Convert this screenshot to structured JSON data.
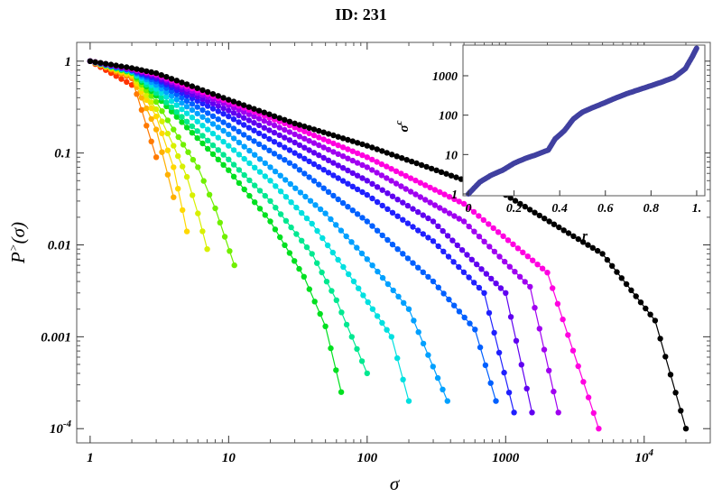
{
  "page": {
    "title": "ID: 231"
  },
  "chart_data": [
    {
      "type": "line",
      "title": "",
      "xlabel": "σ",
      "ylabel": "P>(σ)",
      "xscale": "log",
      "yscale": "log",
      "xlim": [
        0.8,
        30000
      ],
      "ylim": [
        7e-05,
        1.6
      ],
      "grid": false,
      "x_tick_labels": [
        "1",
        "10",
        "100",
        "1000",
        "10^4"
      ],
      "y_tick_labels": [
        "1",
        "0.1",
        "0.01",
        "0.001",
        "10^-4"
      ],
      "series": [
        {
          "color": "#ff3300",
          "points": [
            [
              1,
              1
            ],
            [
              2,
              0.55
            ]
          ]
        },
        {
          "color": "#ff7a00",
          "points": [
            [
              1,
              1
            ],
            [
              2,
              0.65
            ],
            [
              3,
              0.09
            ]
          ]
        },
        {
          "color": "#ffb000",
          "points": [
            [
              1,
              1
            ],
            [
              2,
              0.68
            ],
            [
              3,
              0.18
            ],
            [
              4,
              0.033
            ]
          ]
        },
        {
          "color": "#ffd800",
          "points": [
            [
              1,
              1
            ],
            [
              2,
              0.7
            ],
            [
              3,
              0.25
            ],
            [
              4,
              0.07
            ],
            [
              5,
              0.014
            ]
          ]
        },
        {
          "color": "#d8f000",
          "points": [
            [
              1,
              1
            ],
            [
              2,
              0.72
            ],
            [
              3,
              0.3
            ],
            [
              4,
              0.12
            ],
            [
              5,
              0.055
            ],
            [
              6,
              0.022
            ],
            [
              7,
              0.009
            ]
          ]
        },
        {
          "color": "#70f000",
          "points": [
            [
              1,
              1
            ],
            [
              2,
              0.74
            ],
            [
              3,
              0.36
            ],
            [
              4,
              0.18
            ],
            [
              6,
              0.07
            ],
            [
              8,
              0.025
            ],
            [
              11,
              0.006
            ]
          ]
        },
        {
          "color": "#00e020",
          "points": [
            [
              1,
              1
            ],
            [
              2,
              0.75
            ],
            [
              3,
              0.42
            ],
            [
              5,
              0.19
            ],
            [
              10,
              0.065
            ],
            [
              20,
              0.018
            ],
            [
              35,
              0.0045
            ],
            [
              50,
              0.0013
            ],
            [
              65,
              0.00025
            ]
          ]
        },
        {
          "color": "#00e890",
          "points": [
            [
              1,
              1
            ],
            [
              2,
              0.76
            ],
            [
              3,
              0.45
            ],
            [
              5,
              0.22
            ],
            [
              10,
              0.085
            ],
            [
              20,
              0.03
            ],
            [
              40,
              0.008
            ],
            [
              60,
              0.0025
            ],
            [
              100,
              0.0004
            ]
          ]
        },
        {
          "color": "#00e0e0",
          "points": [
            [
              1,
              1
            ],
            [
              2,
              0.77
            ],
            [
              3,
              0.5
            ],
            [
              5,
              0.27
            ],
            [
              10,
              0.12
            ],
            [
              20,
              0.05
            ],
            [
              40,
              0.017
            ],
            [
              80,
              0.004
            ],
            [
              150,
              0.001
            ],
            [
              200,
              0.0002
            ]
          ]
        },
        {
          "color": "#00a0ff",
          "points": [
            [
              1,
              1
            ],
            [
              2,
              0.78
            ],
            [
              3,
              0.55
            ],
            [
              5,
              0.32
            ],
            [
              10,
              0.16
            ],
            [
              20,
              0.07
            ],
            [
              50,
              0.022
            ],
            [
              100,
              0.007
            ],
            [
              200,
              0.002
            ],
            [
              380,
              0.0002
            ]
          ]
        },
        {
          "color": "#0060ff",
          "points": [
            [
              1,
              1
            ],
            [
              2,
              0.79
            ],
            [
              3,
              0.6
            ],
            [
              5,
              0.37
            ],
            [
              10,
              0.2
            ],
            [
              30,
              0.072
            ],
            [
              100,
              0.018
            ],
            [
              300,
              0.004
            ],
            [
              600,
              0.0012
            ],
            [
              850,
              0.0002
            ]
          ]
        },
        {
          "color": "#2020ff",
          "points": [
            [
              1,
              1
            ],
            [
              2,
              0.8
            ],
            [
              3,
              0.64
            ],
            [
              5,
              0.42
            ],
            [
              10,
              0.25
            ],
            [
              30,
              0.1
            ],
            [
              100,
              0.035
            ],
            [
              300,
              0.011
            ],
            [
              700,
              0.003
            ],
            [
              1150,
              0.00015
            ]
          ]
        },
        {
          "color": "#6000f0",
          "points": [
            [
              1,
              1
            ],
            [
              2,
              0.81
            ],
            [
              3,
              0.67
            ],
            [
              5,
              0.46
            ],
            [
              10,
              0.29
            ],
            [
              30,
              0.13
            ],
            [
              100,
              0.05
            ],
            [
              300,
              0.018
            ],
            [
              1000,
              0.003
            ],
            [
              1550,
              0.00015
            ]
          ]
        },
        {
          "color": "#a000f0",
          "points": [
            [
              1,
              1
            ],
            [
              2,
              0.82
            ],
            [
              3,
              0.7
            ],
            [
              5,
              0.5
            ],
            [
              10,
              0.33
            ],
            [
              30,
              0.16
            ],
            [
              100,
              0.07
            ],
            [
              500,
              0.018
            ],
            [
              1500,
              0.0035
            ],
            [
              2400,
              0.00015
            ]
          ]
        },
        {
          "color": "#ff00e0",
          "points": [
            [
              1,
              1
            ],
            [
              2,
              0.83
            ],
            [
              3,
              0.72
            ],
            [
              5,
              0.53
            ],
            [
              10,
              0.36
            ],
            [
              30,
              0.19
            ],
            [
              100,
              0.09
            ],
            [
              500,
              0.028
            ],
            [
              2000,
              0.005
            ],
            [
              4700,
              0.0001
            ]
          ]
        },
        {
          "color": "#000000",
          "points": [
            [
              1,
              1
            ],
            [
              2,
              0.84
            ],
            [
              3,
              0.74
            ],
            [
              5,
              0.56
            ],
            [
              10,
              0.38
            ],
            [
              30,
              0.21
            ],
            [
              100,
              0.12
            ],
            [
              1000,
              0.035
            ],
            [
              5000,
              0.008
            ],
            [
              12000,
              0.0015
            ],
            [
              20000,
              0.0001
            ]
          ]
        }
      ]
    },
    {
      "type": "scatter",
      "title": "",
      "xlabel": "r",
      "ylabel": "σc",
      "yscale": "log",
      "xlim": [
        0,
        1.02
      ],
      "ylim": [
        0.9,
        6000
      ],
      "x_tick_labels": [
        "0",
        "0.2",
        "0.4",
        "0.6",
        "0.8",
        "1."
      ],
      "y_tick_labels": [
        "1",
        "10",
        "100",
        "1000"
      ],
      "series": [
        {
          "color": "#4040a0",
          "points": [
            [
              0,
              1
            ],
            [
              0.05,
              2
            ],
            [
              0.1,
              3
            ],
            [
              0.15,
              4
            ],
            [
              0.2,
              6
            ],
            [
              0.25,
              8
            ],
            [
              0.3,
              10
            ],
            [
              0.35,
              13
            ],
            [
              0.38,
              25
            ],
            [
              0.42,
              40
            ],
            [
              0.46,
              80
            ],
            [
              0.5,
              120
            ],
            [
              0.55,
              160
            ],
            [
              0.6,
              210
            ],
            [
              0.65,
              280
            ],
            [
              0.7,
              360
            ],
            [
              0.75,
              450
            ],
            [
              0.8,
              560
            ],
            [
              0.85,
              700
            ],
            [
              0.9,
              900
            ],
            [
              0.95,
              1500
            ],
            [
              0.98,
              3000
            ],
            [
              1.0,
              5000
            ]
          ]
        }
      ]
    }
  ]
}
